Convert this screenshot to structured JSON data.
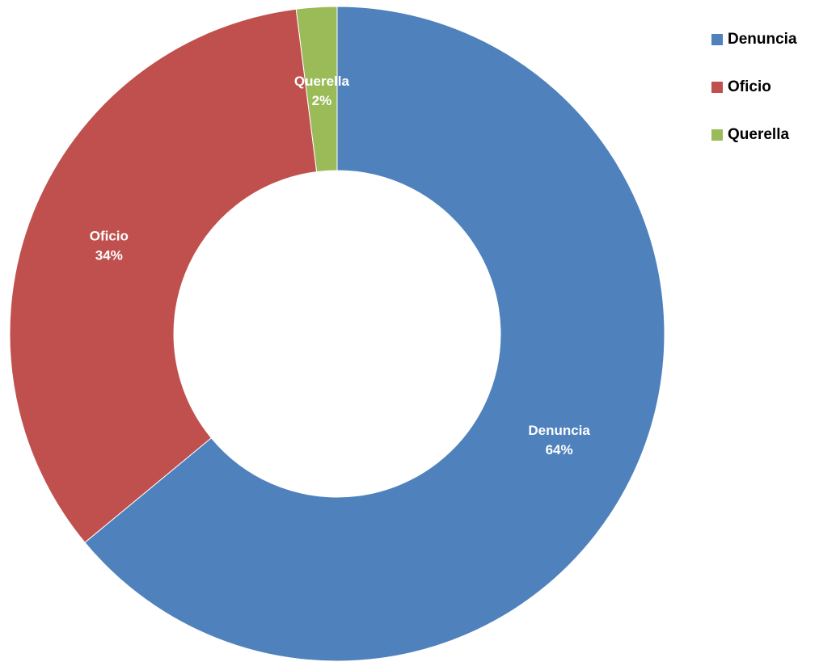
{
  "chart_data": {
    "type": "pie",
    "donut": true,
    "title": "",
    "categories": [
      "Denuncia",
      "Oficio",
      "Querella"
    ],
    "values": [
      64,
      34,
      2
    ],
    "value_labels": [
      "64%",
      "34%",
      "2%"
    ],
    "colors": [
      "#4F81BD",
      "#C0504D",
      "#9BBB59"
    ],
    "legend_position": "top-right",
    "legend": [
      {
        "label": "Denuncia",
        "color": "#4F81BD"
      },
      {
        "label": "Oficio",
        "color": "#C0504D"
      },
      {
        "label": "Querella",
        "color": "#9BBB59"
      }
    ]
  }
}
